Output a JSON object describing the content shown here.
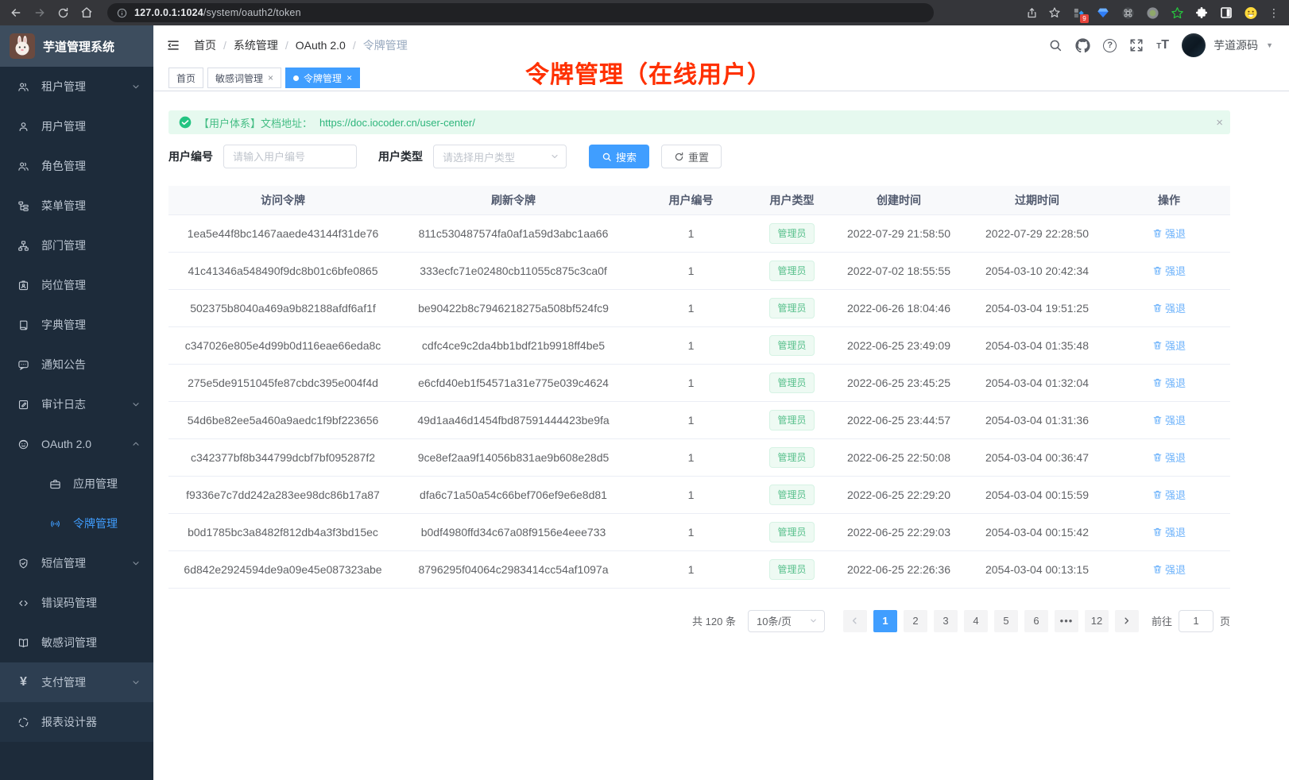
{
  "browser": {
    "url_host": "127.0.0.1:1024",
    "url_path": "/system/oauth2/token",
    "extension_badge": "9"
  },
  "sidebar": {
    "logo_title": "芋道管理系统",
    "items": [
      {
        "label": "租户管理",
        "icon": "tenant",
        "chevron": "down"
      },
      {
        "label": "用户管理",
        "icon": "user"
      },
      {
        "label": "角色管理",
        "icon": "role"
      },
      {
        "label": "菜单管理",
        "icon": "menu"
      },
      {
        "label": "部门管理",
        "icon": "dept"
      },
      {
        "label": "岗位管理",
        "icon": "post"
      },
      {
        "label": "字典管理",
        "icon": "dict"
      },
      {
        "label": "通知公告",
        "icon": "notice"
      },
      {
        "label": "审计日志",
        "icon": "log",
        "chevron": "down"
      },
      {
        "label": "OAuth 2.0",
        "icon": "oauth",
        "chevron": "up"
      },
      {
        "label": "应用管理",
        "icon": "app",
        "child": true
      },
      {
        "label": "令牌管理",
        "icon": "token",
        "child": true,
        "active": true
      },
      {
        "label": "短信管理",
        "icon": "sms",
        "chevron": "down"
      },
      {
        "label": "错误码管理",
        "icon": "code"
      },
      {
        "label": "敏感词管理",
        "icon": "word"
      },
      {
        "label": "支付管理",
        "icon": "pay",
        "chevron": "down",
        "hover": true,
        "bottom": true
      },
      {
        "label": "报表设计器",
        "icon": "report",
        "bottom": true
      }
    ]
  },
  "breadcrumb": [
    "首页",
    "系统管理",
    "OAuth 2.0",
    "令牌管理"
  ],
  "annotation": "令牌管理（在线用户）",
  "header_right": {
    "username": "芋道源码"
  },
  "tabs": [
    {
      "label": "首页",
      "closable": false,
      "active": false
    },
    {
      "label": "敏感词管理",
      "closable": true,
      "active": false
    },
    {
      "label": "令牌管理",
      "closable": true,
      "active": true
    }
  ],
  "alert": {
    "text": "【用户体系】文档地址：",
    "link": "https://doc.iocoder.cn/user-center/",
    "close": "×"
  },
  "filters": {
    "user_id_label": "用户编号",
    "user_id_placeholder": "请输入用户编号",
    "user_type_label": "用户类型",
    "user_type_placeholder": "请选择用户类型",
    "search_label": "搜索",
    "reset_label": "重置"
  },
  "table": {
    "columns": [
      "访问令牌",
      "刷新令牌",
      "用户编号",
      "用户类型",
      "创建时间",
      "过期时间",
      "操作"
    ],
    "action_label": "强退",
    "rows": [
      {
        "access": "1ea5e44f8bc1467aaede43144f31de76",
        "refresh": "811c530487574fa0af1a59d3abc1aa66",
        "user_id": "1",
        "user_type": "管理员",
        "created": "2022-07-29 21:58:50",
        "expires": "2022-07-29 22:28:50"
      },
      {
        "access": "41c41346a548490f9dc8b01c6bfe0865",
        "refresh": "333ecfc71e02480cb11055c875c3ca0f",
        "user_id": "1",
        "user_type": "管理员",
        "created": "2022-07-02 18:55:55",
        "expires": "2054-03-10 20:42:34"
      },
      {
        "access": "502375b8040a469a9b82188afdf6af1f",
        "refresh": "be90422b8c7946218275a508bf524fc9",
        "user_id": "1",
        "user_type": "管理员",
        "created": "2022-06-26 18:04:46",
        "expires": "2054-03-04 19:51:25"
      },
      {
        "access": "c347026e805e4d99b0d116eae66eda8c",
        "refresh": "cdfc4ce9c2da4bb1bdf21b9918ff4be5",
        "user_id": "1",
        "user_type": "管理员",
        "created": "2022-06-25 23:49:09",
        "expires": "2054-03-04 01:35:48"
      },
      {
        "access": "275e5de9151045fe87cbdc395e004f4d",
        "refresh": "e6cfd40eb1f54571a31e775e039c4624",
        "user_id": "1",
        "user_type": "管理员",
        "created": "2022-06-25 23:45:25",
        "expires": "2054-03-04 01:32:04"
      },
      {
        "access": "54d6be82ee5a460a9aedc1f9bf223656",
        "refresh": "49d1aa46d1454fbd87591444423be9fa",
        "user_id": "1",
        "user_type": "管理员",
        "created": "2022-06-25 23:44:57",
        "expires": "2054-03-04 01:31:36"
      },
      {
        "access": "c342377bf8b344799dcbf7bf095287f2",
        "refresh": "9ce8ef2aa9f14056b831ae9b608e28d5",
        "user_id": "1",
        "user_type": "管理员",
        "created": "2022-06-25 22:50:08",
        "expires": "2054-03-04 00:36:47"
      },
      {
        "access": "f9336e7c7dd242a283ee98dc86b17a87",
        "refresh": "dfa6c71a50a54c66bef706ef9e6e8d81",
        "user_id": "1",
        "user_type": "管理员",
        "created": "2022-06-25 22:29:20",
        "expires": "2054-03-04 00:15:59"
      },
      {
        "access": "b0d1785bc3a8482f812db4a3f3bd15ec",
        "refresh": "b0df4980ffd34c67a08f9156e4eee733",
        "user_id": "1",
        "user_type": "管理员",
        "created": "2022-06-25 22:29:03",
        "expires": "2054-03-04 00:15:42"
      },
      {
        "access": "6d842e2924594de9a09e45e087323abe",
        "refresh": "8796295f04064c2983414cc54af1097a",
        "user_id": "1",
        "user_type": "管理员",
        "created": "2022-06-25 22:26:36",
        "expires": "2054-03-04 00:13:15"
      }
    ]
  },
  "pagination": {
    "total": "共 120 条",
    "page_size": "10条/页",
    "pages": [
      "1",
      "2",
      "3",
      "4",
      "5",
      "6",
      "•••",
      "12"
    ],
    "active_page": "1",
    "goto_label": "前往",
    "goto_value": "1",
    "goto_suffix": "页"
  },
  "colors": {
    "primary": "#409eff",
    "success_tag_text": "#58c08c",
    "annotation_red": "#ff3000",
    "sidebar_bg": "#1d2b3a"
  }
}
